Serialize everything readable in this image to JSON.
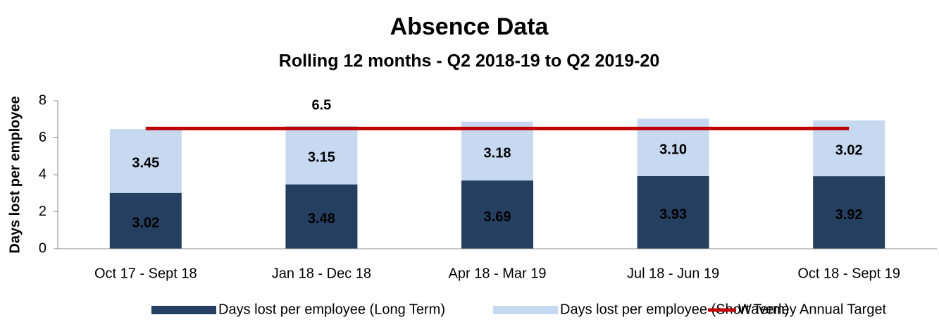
{
  "chart_data": {
    "type": "bar",
    "stacked": true,
    "title": "Absence Data",
    "subtitle": "Rolling 12 months - Q2 2018-19 to Q2 2019-20",
    "y_label": "Days lost per employee",
    "categories": [
      "Oct 17 - Sept 18",
      "Jan 18 - Dec 18",
      "Apr 18 - Mar 19",
      "Jul 18 - Jun 19",
      "Oct 18 - Sept 19"
    ],
    "series": [
      {
        "name": "Days lost per employee (Long Term)",
        "color": "#243f60",
        "label_color": "#ffffff",
        "values": [
          3.02,
          3.48,
          3.69,
          3.93,
          3.92
        ],
        "value_labels": [
          "3.02",
          "3.48",
          "3.69",
          "3.93",
          "3.92"
        ]
      },
      {
        "name": "Days lost per employee (Short Term)",
        "color": "#c6d9f1",
        "label_color": "#1a1a1a",
        "values": [
          3.45,
          3.15,
          3.18,
          3.1,
          3.02
        ],
        "value_labels": [
          "3.45",
          "3.15",
          "3.18",
          "3.10",
          "3.02"
        ]
      },
      {
        "name": "Waverley Annual Target",
        "type": "line",
        "color": "#c00000",
        "values": [
          6.5,
          6.5,
          6.5,
          6.5,
          6.5
        ]
      }
    ],
    "ylim": [
      0,
      8
    ],
    "yticks": [
      0,
      2,
      4,
      6,
      8
    ],
    "grid": false,
    "legend": "bottom"
  }
}
